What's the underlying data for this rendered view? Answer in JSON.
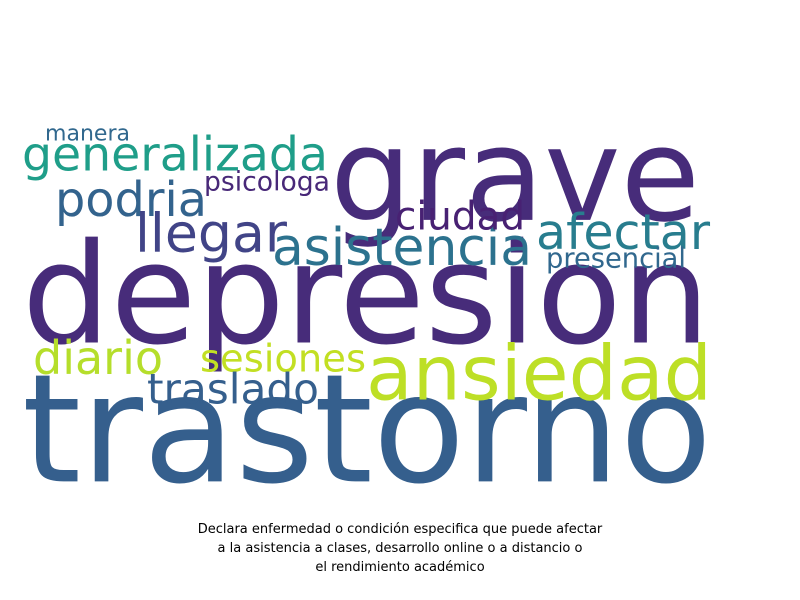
{
  "word_cloud": {
    "words": [
      {
        "text": "grave",
        "color": "#472c7a"
      },
      {
        "text": "depresion",
        "color": "#472c7a"
      },
      {
        "text": "trastorno",
        "color": "#355f8d"
      },
      {
        "text": "ansiedad",
        "color": "#bddf26"
      },
      {
        "text": "generalizada",
        "color": "#1f9e89"
      },
      {
        "text": "podria",
        "color": "#33638d"
      },
      {
        "text": "afectar",
        "color": "#287d8e"
      },
      {
        "text": "llegar",
        "color": "#414487"
      },
      {
        "text": "asistencia",
        "color": "#2c728e"
      },
      {
        "text": "ciudad",
        "color": "#482173"
      },
      {
        "text": "psicologa",
        "color": "#482878"
      },
      {
        "text": "manera",
        "color": "#31688e"
      },
      {
        "text": "presencial",
        "color": "#31688e"
      },
      {
        "text": "diario",
        "color": "#b5de2b"
      },
      {
        "text": "sesiones",
        "color": "#c2df23"
      },
      {
        "text": "traslado",
        "color": "#355f8d"
      }
    ]
  },
  "caption": {
    "line1": "Declara enfermedad o condición especifica que puede afectar",
    "line2": "a la asistencia a clases, desarrollo online o a distancio o",
    "line3": "el rendimiento académico"
  }
}
